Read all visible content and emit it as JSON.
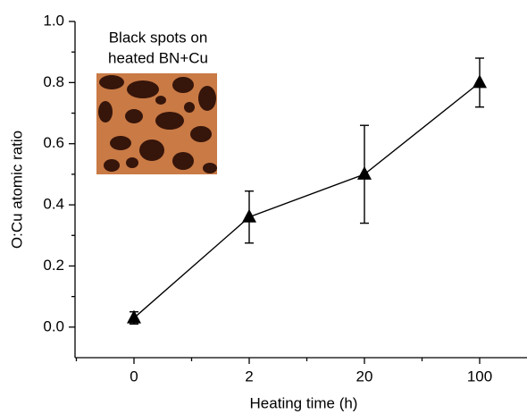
{
  "chart_data": {
    "type": "line",
    "x_label": "Heating time (h)",
    "y_label": "O:Cu atomic ratio",
    "annotation": [
      "Black spots on",
      "heated BN+Cu"
    ],
    "categories": [
      "0",
      "2",
      "20",
      "100"
    ],
    "series": [
      {
        "color": "#000000",
        "marker": "triangle",
        "values": [
          0.03,
          0.36,
          0.5,
          0.8
        ],
        "errors": [
          0.02,
          0.085,
          0.16,
          0.08
        ]
      }
    ],
    "ylim": [
      -0.1,
      1.0
    ],
    "yticks": [
      {
        "value": 0,
        "label": "0.0"
      },
      {
        "value": 0.2,
        "label": "0.2"
      },
      {
        "value": 0.4,
        "label": "0.4"
      },
      {
        "value": 0.6,
        "label": "0.6"
      },
      {
        "value": 0.8,
        "label": "0.8"
      },
      {
        "value": 1.0,
        "label": "1.0"
      }
    ]
  }
}
